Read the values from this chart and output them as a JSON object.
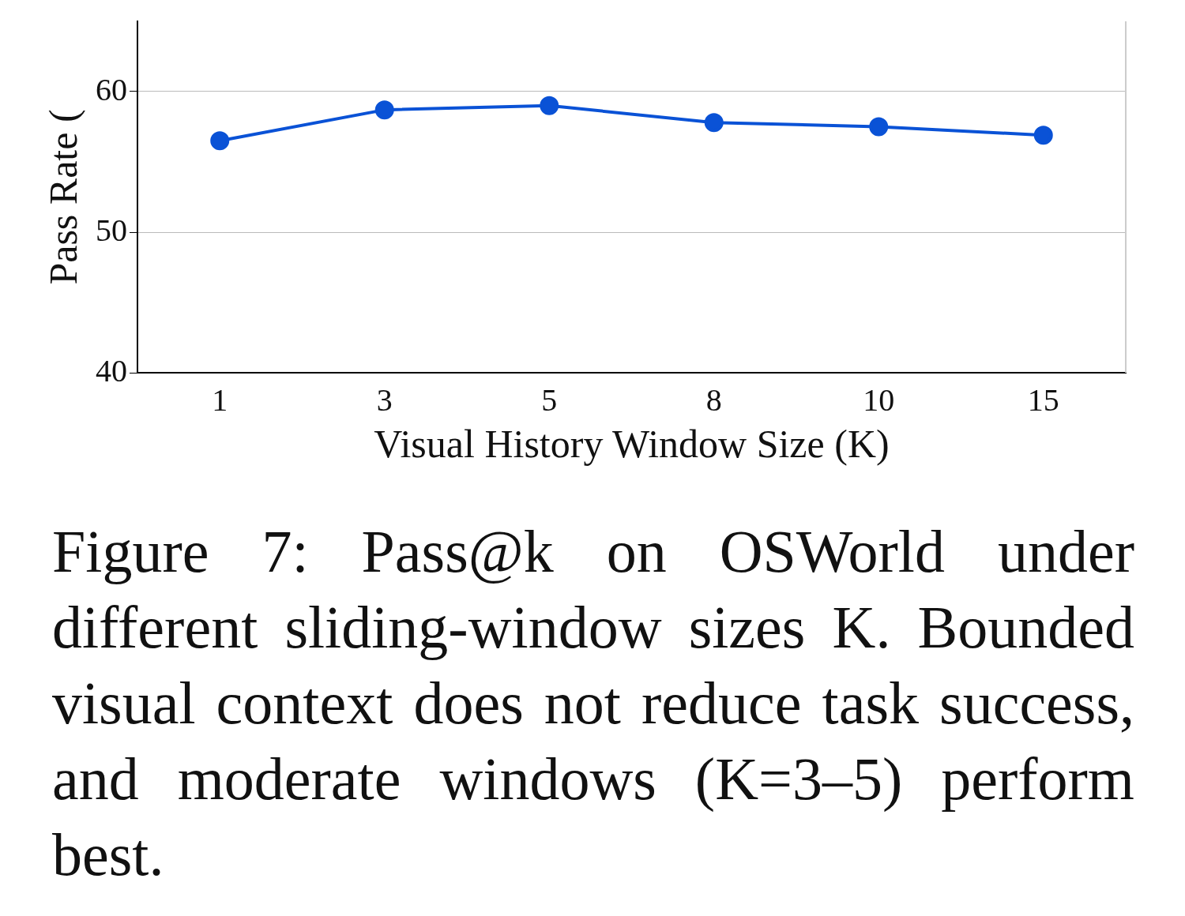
{
  "chart_data": {
    "type": "line",
    "xlabel": "Visual History Window Size (K)",
    "ylabel": "Pass Rate (",
    "categories": [
      "1",
      "3",
      "5",
      "8",
      "10",
      "15"
    ],
    "series": [
      {
        "color": "#0a52d6",
        "values": [
          56.5,
          58.7,
          59.0,
          57.8,
          57.5,
          56.9
        ]
      }
    ],
    "ylim": [
      40,
      65
    ],
    "yticks": [
      40,
      50,
      60
    ],
    "grid": "y",
    "marker": "circle",
    "line_style": "solid",
    "legend": false,
    "annotations": [
      "Figure 7: Pass@k on OSWorld under different sliding-window sizes K. Bounded visual context does not reduce task success, and moderate windows (K=3–5) perform best."
    ]
  }
}
